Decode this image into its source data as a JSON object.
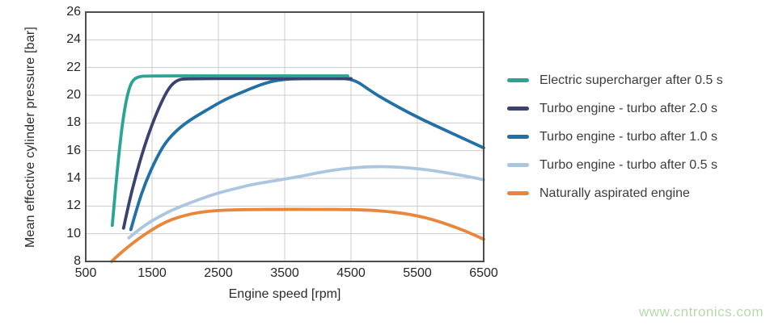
{
  "watermark": {
    "text": "www.cntronics.com",
    "color": "#b5dbab"
  },
  "chart_data": {
    "type": "line",
    "title": "",
    "xlabel": "Engine speed [rpm]",
    "ylabel": "Mean effective cylinder pressure [bar]",
    "xlim": [
      500,
      6500
    ],
    "ylim": [
      8,
      26
    ],
    "xticks": [
      500,
      1500,
      2500,
      3500,
      4500,
      5500,
      6500
    ],
    "yticks": [
      8,
      10,
      12,
      14,
      16,
      18,
      20,
      22,
      24,
      26
    ],
    "grid": true,
    "grid_color": "#cccccc",
    "frame_color": "#4d4d4d",
    "legend_position": "right",
    "series": [
      {
        "name": "Electric supercharger after 0.5 s",
        "color": "#2aa493",
        "points": [
          [
            900,
            10.6
          ],
          [
            935,
            12.5
          ],
          [
            970,
            14.3
          ],
          [
            1010,
            16.2
          ],
          [
            1060,
            18.2
          ],
          [
            1120,
            19.9
          ],
          [
            1190,
            21.0
          ],
          [
            1290,
            21.35
          ],
          [
            1450,
            21.4
          ],
          [
            2500,
            21.4
          ],
          [
            3500,
            21.4
          ],
          [
            4450,
            21.4
          ]
        ]
      },
      {
        "name": "Turbo engine - turbo after 2.0 s",
        "color": "#3a4370",
        "points": [
          [
            1070,
            10.4
          ],
          [
            1150,
            12.2
          ],
          [
            1250,
            14.1
          ],
          [
            1370,
            16.1
          ],
          [
            1500,
            17.9
          ],
          [
            1630,
            19.4
          ],
          [
            1760,
            20.6
          ],
          [
            1880,
            21.1
          ],
          [
            2000,
            21.2
          ],
          [
            3000,
            21.2
          ],
          [
            4000,
            21.2
          ],
          [
            4500,
            21.2
          ]
        ]
      },
      {
        "name": "Turbo engine - turbo after 1.0 s",
        "color": "#2170a6",
        "points": [
          [
            1180,
            10.3
          ],
          [
            1280,
            12.0
          ],
          [
            1400,
            13.7
          ],
          [
            1550,
            15.3
          ],
          [
            1700,
            16.6
          ],
          [
            1900,
            17.6
          ],
          [
            2100,
            18.3
          ],
          [
            2350,
            19.0
          ],
          [
            2600,
            19.7
          ],
          [
            2850,
            20.2
          ],
          [
            3100,
            20.7
          ],
          [
            3300,
            21.0
          ],
          [
            3500,
            21.15
          ],
          [
            3700,
            21.2
          ],
          [
            4200,
            21.2
          ],
          [
            4530,
            21.2
          ],
          [
            4800,
            20.3
          ],
          [
            5000,
            19.7
          ],
          [
            5500,
            18.4
          ],
          [
            6000,
            17.3
          ],
          [
            6500,
            16.2
          ]
        ]
      },
      {
        "name": "Turbo engine - turbo after 0.5 s",
        "color": "#abc6de",
        "points": [
          [
            1150,
            9.7
          ],
          [
            1300,
            10.3
          ],
          [
            1500,
            10.95
          ],
          [
            1750,
            11.6
          ],
          [
            2000,
            12.1
          ],
          [
            2250,
            12.55
          ],
          [
            2500,
            12.95
          ],
          [
            2750,
            13.25
          ],
          [
            3000,
            13.55
          ],
          [
            3250,
            13.75
          ],
          [
            3500,
            13.95
          ],
          [
            3750,
            14.15
          ],
          [
            4000,
            14.4
          ],
          [
            4250,
            14.6
          ],
          [
            4500,
            14.75
          ],
          [
            4750,
            14.83
          ],
          [
            5000,
            14.85
          ],
          [
            5250,
            14.8
          ],
          [
            5500,
            14.7
          ],
          [
            5750,
            14.55
          ],
          [
            6000,
            14.35
          ],
          [
            6250,
            14.15
          ],
          [
            6500,
            13.9
          ]
        ]
      },
      {
        "name": "Naturally aspirated engine",
        "color": "#ea863a",
        "points": [
          [
            890,
            8.0
          ],
          [
            1000,
            8.5
          ],
          [
            1150,
            9.1
          ],
          [
            1300,
            9.65
          ],
          [
            1500,
            10.3
          ],
          [
            1700,
            10.85
          ],
          [
            1900,
            11.2
          ],
          [
            2100,
            11.45
          ],
          [
            2300,
            11.6
          ],
          [
            2500,
            11.68
          ],
          [
            2750,
            11.73
          ],
          [
            3000,
            11.75
          ],
          [
            3500,
            11.76
          ],
          [
            4000,
            11.76
          ],
          [
            4500,
            11.75
          ],
          [
            4800,
            11.7
          ],
          [
            5000,
            11.63
          ],
          [
            5250,
            11.5
          ],
          [
            5500,
            11.3
          ],
          [
            5750,
            11.0
          ],
          [
            6000,
            10.6
          ],
          [
            6250,
            10.15
          ],
          [
            6500,
            9.6
          ]
        ]
      }
    ]
  }
}
